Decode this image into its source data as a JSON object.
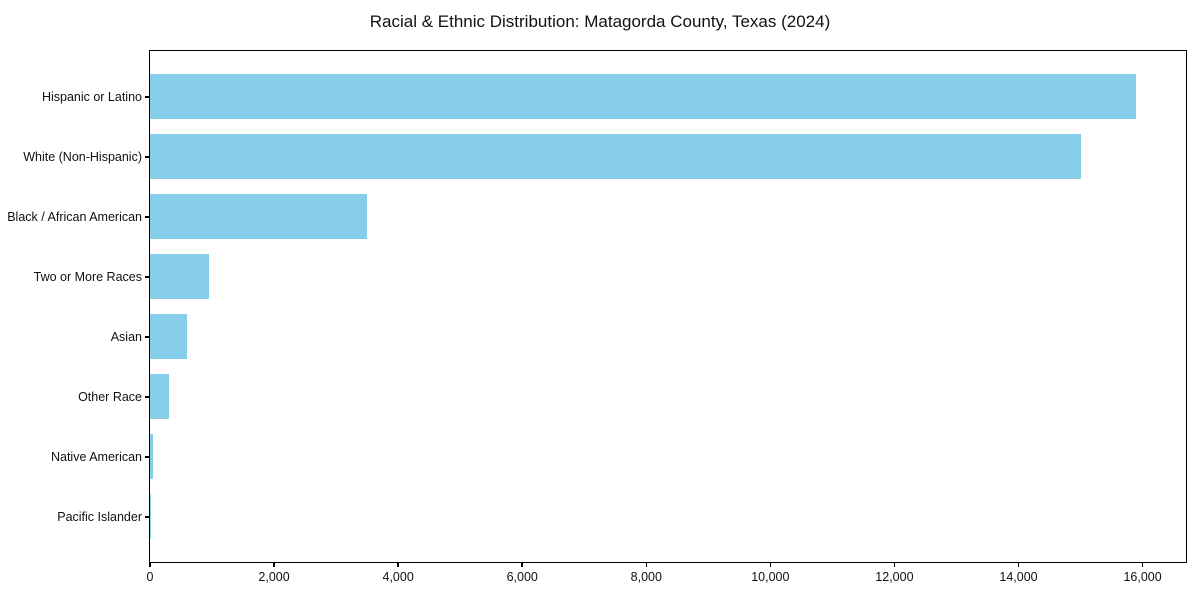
{
  "chart_data": {
    "type": "bar",
    "orientation": "horizontal",
    "title": "Racial & Ethnic Distribution: Matagorda County, Texas (2024)",
    "categories": [
      "Hispanic or Latino",
      "White (Non-Hispanic)",
      "Black / African American",
      "Two or More Races",
      "Asian",
      "Other Race",
      "Native American",
      "Pacific Islander"
    ],
    "values": [
      15900,
      15000,
      3500,
      950,
      600,
      310,
      50,
      15
    ],
    "xlabel": "",
    "ylabel": "",
    "xlim": [
      0,
      16700
    ],
    "x_ticks": [
      0,
      2000,
      4000,
      6000,
      8000,
      10000,
      12000,
      14000,
      16000
    ],
    "x_tick_labels": [
      "0",
      "2,000",
      "4,000",
      "6,000",
      "8,000",
      "10,000",
      "12,000",
      "14,000",
      "16,000"
    ],
    "bar_color": "#87CEEB",
    "spine_color": "#000000",
    "text_color": "#111111",
    "background_color": "#ffffff",
    "grid": false,
    "legend": null
  }
}
